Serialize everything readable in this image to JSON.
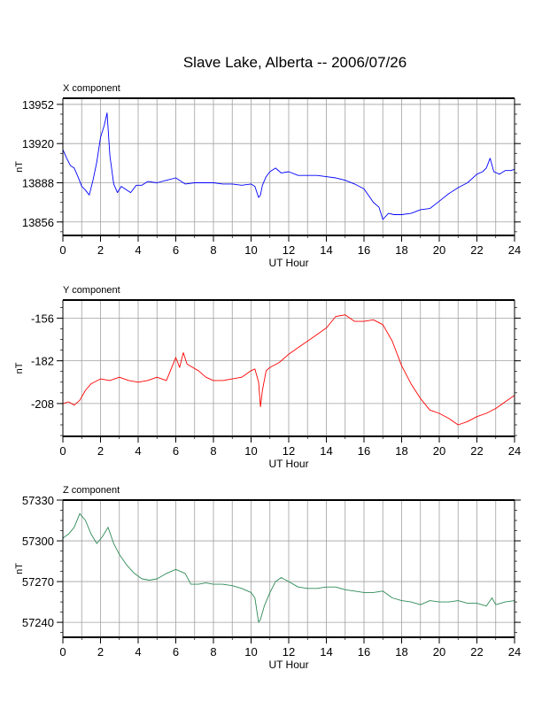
{
  "title": "Slave Lake, Alberta -- 2006/07/26",
  "chart_data": [
    {
      "type": "line",
      "panel_label": "X component",
      "xlabel": "UT Hour",
      "ylabel": "nT",
      "xlim": [
        0,
        24
      ],
      "ylim": [
        13845,
        13957
      ],
      "xticks": [
        0,
        2,
        4,
        6,
        8,
        10,
        12,
        14,
        16,
        18,
        20,
        22,
        24
      ],
      "yticks": [
        13856,
        13888,
        13920,
        13952
      ],
      "grid": true,
      "color": "#0000ff",
      "x": [
        0,
        0.2,
        0.4,
        0.6,
        0.8,
        1.0,
        1.2,
        1.4,
        1.6,
        1.8,
        2.0,
        2.2,
        2.35,
        2.5,
        2.7,
        2.9,
        3.1,
        3.3,
        3.6,
        3.9,
        4.2,
        4.5,
        5.0,
        5.5,
        6.0,
        6.5,
        7.0,
        7.5,
        8.0,
        8.5,
        9.0,
        9.5,
        10.0,
        10.2,
        10.4,
        10.5,
        10.6,
        10.8,
        11.0,
        11.3,
        11.6,
        12.0,
        12.5,
        13.0,
        13.5,
        14.0,
        14.5,
        15.0,
        15.5,
        16.0,
        16.5,
        16.8,
        17.0,
        17.3,
        17.6,
        18.0,
        18.5,
        19.0,
        19.5,
        20.0,
        20.5,
        21.0,
        21.5,
        22.0,
        22.3,
        22.5,
        22.7,
        22.9,
        23.2,
        23.5,
        23.8,
        24.0
      ],
      "y": [
        13915,
        13908,
        13902,
        13900,
        13893,
        13885,
        13882,
        13878,
        13890,
        13905,
        13925,
        13935,
        13945,
        13910,
        13887,
        13880,
        13885,
        13883,
        13880,
        13886,
        13886,
        13889,
        13888,
        13890,
        13892,
        13887,
        13888,
        13888,
        13888,
        13887,
        13887,
        13886,
        13887,
        13885,
        13876,
        13878,
        13886,
        13893,
        13897,
        13900,
        13896,
        13897,
        13894,
        13894,
        13894,
        13893,
        13892,
        13890,
        13887,
        13883,
        13872,
        13868,
        13858,
        13863,
        13862,
        13862,
        13863,
        13866,
        13867,
        13873,
        13879,
        13884,
        13888,
        13895,
        13897,
        13900,
        13908,
        13897,
        13895,
        13898,
        13898,
        13899
      ]
    },
    {
      "type": "line",
      "panel_label": "Y component",
      "xlabel": "UT Hour",
      "ylabel": "nT",
      "xlim": [
        0,
        24
      ],
      "ylim": [
        -228,
        -145
      ],
      "xticks": [
        0,
        2,
        4,
        6,
        8,
        10,
        12,
        14,
        16,
        18,
        20,
        22,
        24
      ],
      "yticks": [
        -156,
        -182,
        -208
      ],
      "grid": true,
      "color": "#ff0000",
      "x": [
        0,
        0.3,
        0.6,
        0.9,
        1.2,
        1.5,
        2.0,
        2.5,
        3.0,
        3.5,
        4.0,
        4.5,
        5.0,
        5.5,
        6.0,
        6.2,
        6.4,
        6.6,
        6.9,
        7.2,
        7.6,
        8.0,
        8.5,
        9.0,
        9.5,
        10.0,
        10.2,
        10.4,
        10.5,
        10.6,
        10.8,
        11.0,
        11.5,
        12.0,
        12.5,
        13.0,
        13.5,
        14.0,
        14.5,
        15.0,
        15.5,
        16.0,
        16.5,
        17.0,
        17.5,
        18.0,
        18.5,
        19.0,
        19.5,
        20.0,
        20.5,
        21.0,
        21.5,
        22.0,
        22.5,
        23.0,
        23.5,
        24.0
      ],
      "y": [
        -208,
        -207,
        -209,
        -206,
        -200,
        -196,
        -193,
        -194,
        -192,
        -194,
        -195,
        -194,
        -192,
        -194,
        -180,
        -186,
        -177,
        -184,
        -186,
        -188,
        -192,
        -194,
        -194,
        -193,
        -192,
        -188,
        -187,
        -195,
        -210,
        -200,
        -188,
        -186,
        -183,
        -178,
        -174,
        -170,
        -166,
        -162,
        -155,
        -154,
        -158,
        -158,
        -157,
        -160,
        -170,
        -185,
        -196,
        -205,
        -212,
        -214,
        -217,
        -221,
        -219,
        -216,
        -214,
        -211,
        -207,
        -203
      ]
    },
    {
      "type": "line",
      "panel_label": "Z component",
      "xlabel": "UT Hour",
      "ylabel": "nT",
      "xlim": [
        0,
        24
      ],
      "ylim": [
        57229,
        57330
      ],
      "xticks": [
        0,
        2,
        4,
        6,
        8,
        10,
        12,
        14,
        16,
        18,
        20,
        22,
        24
      ],
      "yticks": [
        57330,
        57300,
        57270,
        57240
      ],
      "grid": true,
      "color": "#2e8b57",
      "x": [
        0,
        0.3,
        0.6,
        0.9,
        1.2,
        1.5,
        1.8,
        2.1,
        2.4,
        2.7,
        3.0,
        3.4,
        3.8,
        4.2,
        4.6,
        5.0,
        5.5,
        6.0,
        6.5,
        6.8,
        7.2,
        7.6,
        8.0,
        8.5,
        9.0,
        9.5,
        10.0,
        10.2,
        10.4,
        10.5,
        10.7,
        11.0,
        11.3,
        11.6,
        12.0,
        12.5,
        13.0,
        13.5,
        14.0,
        14.5,
        15.0,
        15.5,
        16.0,
        16.5,
        17.0,
        17.5,
        18.0,
        18.5,
        19.0,
        19.5,
        20.0,
        20.5,
        21.0,
        21.5,
        22.0,
        22.5,
        22.8,
        23.0,
        23.5,
        24.0
      ],
      "y": [
        57302,
        57305,
        57310,
        57320,
        57315,
        57305,
        57298,
        57303,
        57310,
        57298,
        57290,
        57282,
        57276,
        57272,
        57271,
        57272,
        57276,
        57279,
        57276,
        57268,
        57268,
        57269,
        57268,
        57268,
        57267,
        57265,
        57262,
        57258,
        57240,
        57242,
        57252,
        57262,
        57270,
        57273,
        57270,
        57266,
        57265,
        57265,
        57266,
        57266,
        57264,
        57263,
        57262,
        57262,
        57263,
        57258,
        57256,
        57255,
        57253,
        57256,
        57255,
        57255,
        57256,
        57254,
        57254,
        57252,
        57258,
        57253,
        57255,
        57256
      ]
    }
  ]
}
